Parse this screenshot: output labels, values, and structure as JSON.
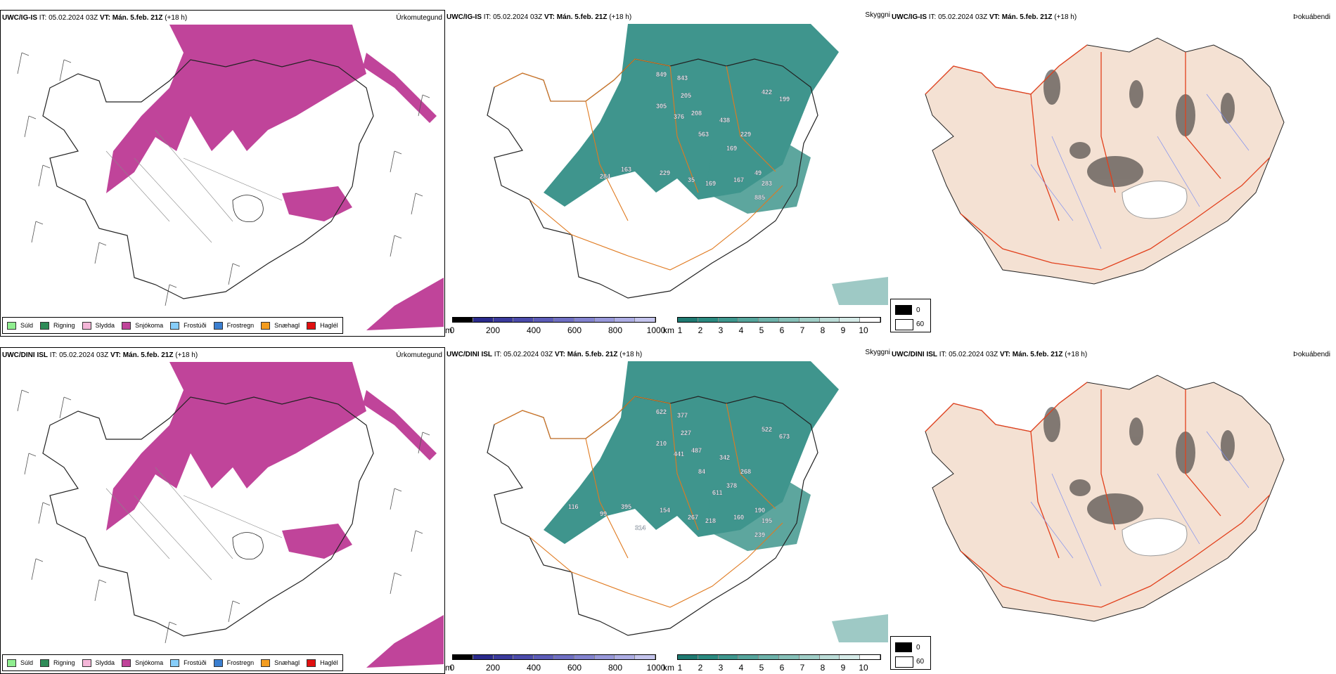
{
  "rows": [
    {
      "model": "UWC/IG-IS",
      "it_label": "IT:",
      "it_value": "05.02.2024 03Z",
      "vt_label": "VT:",
      "vt_value": "Mán. 5.feb. 21Z",
      "lead": "(+18 h)",
      "precip_title": "Úrkomutegund",
      "vis_title": "Skyggni",
      "fog_title": "Þokuábendi",
      "elev_labels": [
        "849",
        "843",
        "205",
        "305",
        "376",
        "208",
        "438",
        "422",
        "199",
        "563",
        "229",
        "169",
        "163",
        "284",
        "229",
        "35",
        "169",
        "167",
        "49",
        "283",
        "885"
      ]
    },
    {
      "model": "UWC/DINI ISL",
      "it_label": "IT:",
      "it_value": "05.02.2024 03Z",
      "vt_label": "VT:",
      "vt_value": "Mán. 5.feb. 21Z",
      "lead": "(+18 h)",
      "precip_title": "Úrkomutegund",
      "vis_title": "Skyggni",
      "fog_title": "Þokuábendi",
      "elev_labels": [
        "622",
        "377",
        "227",
        "210",
        "441",
        "487",
        "342",
        "522",
        "673",
        "84",
        "268",
        "378",
        "395",
        "99",
        "154",
        "267",
        "218",
        "160",
        "190",
        "195",
        "239",
        "116",
        "314",
        "611"
      ]
    }
  ],
  "precip_legend": [
    {
      "label": "Súld",
      "color": "#90ee90"
    },
    {
      "label": "Rigning",
      "color": "#2e8b57"
    },
    {
      "label": "Slydda",
      "color": "#f4b6d8"
    },
    {
      "label": "Snjókoma",
      "color": "#c0449a"
    },
    {
      "label": "Frostúði",
      "color": "#87cefa"
    },
    {
      "label": "Frostregn",
      "color": "#3b7fd0"
    },
    {
      "label": "Snæhagl",
      "color": "#f39c1f"
    },
    {
      "label": "Haglél",
      "color": "#e01010"
    }
  ],
  "height_bar": {
    "unit": "m",
    "ticks": [
      "0",
      "200",
      "400",
      "600",
      "800",
      "1000"
    ]
  },
  "vis_bar": {
    "unit": "km",
    "ticks": [
      "1",
      "2",
      "3",
      "4",
      "5",
      "6",
      "7",
      "8",
      "9",
      "10"
    ]
  },
  "fog_legend": {
    "values": [
      "0",
      "60"
    ]
  },
  "colors": {
    "snow": "#c0449a",
    "vis": "#2a8a80",
    "roads": "#e07a20",
    "fog_land": "#f4e1d3",
    "red_roads": "#e2401c"
  }
}
